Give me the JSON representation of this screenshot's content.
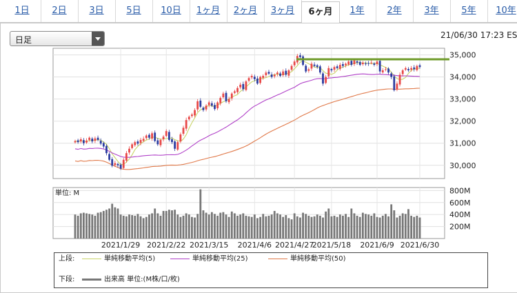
{
  "tabs": [
    {
      "label": "1日",
      "active": false
    },
    {
      "label": "2日",
      "active": false
    },
    {
      "label": "3日",
      "active": false
    },
    {
      "label": "5日",
      "active": false
    },
    {
      "label": "10日",
      "active": false
    },
    {
      "label": "1ヶ月",
      "active": false
    },
    {
      "label": "2ヶ月",
      "active": false
    },
    {
      "label": "3ヶ月",
      "active": false
    },
    {
      "label": "6ヶ月",
      "active": true
    },
    {
      "label": "1年",
      "active": false
    },
    {
      "label": "2年",
      "active": false
    },
    {
      "label": "3年",
      "active": false
    },
    {
      "label": "5年",
      "active": false
    },
    {
      "label": "10年",
      "active": false
    }
  ],
  "period_select": {
    "value": "日足"
  },
  "timestamp": "21/06/30 17:23 ES",
  "colors": {
    "up": "#e84848",
    "down": "#2c3ca0",
    "ma5": "#c8d468",
    "ma25": "#b040c8",
    "ma50": "#e07848",
    "resistance": "#6e9a28",
    "volume": "#777777"
  },
  "volume_label": "単位: M",
  "legend": {
    "upper_label": "上段:",
    "lower_label": "下段:",
    "items": [
      {
        "name": "単純移動平均(5)",
        "color": "#c8d468"
      },
      {
        "name": "単純移動平均(25)",
        "color": "#b040c8"
      },
      {
        "name": "単純移動平均(50)",
        "color": "#e07848"
      }
    ],
    "volume_item": "出来高 単位:(M株/口/枚)"
  },
  "chart_data": {
    "type": "candlestick",
    "price_ylim": [
      29400,
      35300
    ],
    "price_ticks": [
      30000,
      31000,
      32000,
      33000,
      34000,
      35000
    ],
    "price_tick_labels": [
      "30,000",
      "31,000",
      "32,000",
      "33,000",
      "34,000",
      "35,000"
    ],
    "volume_ylim": [
      0,
      850
    ],
    "volume_ticks": [
      200,
      400,
      600,
      800
    ],
    "volume_tick_labels": [
      "200M",
      "400M",
      "600M",
      "800M"
    ],
    "x_labels": [
      {
        "label": "2021/1/29",
        "index": 16
      },
      {
        "label": "2021/2/22",
        "index": 32
      },
      {
        "label": "2021/3/15",
        "index": 47
      },
      {
        "label": "2021/4/6",
        "index": 63
      },
      {
        "label": "2021/4/27",
        "index": 77
      },
      {
        "label": "2021/5/18",
        "index": 90
      },
      {
        "label": "2021/6/9",
        "index": 106
      },
      {
        "label": "2021/6/30",
        "index": 121
      }
    ],
    "resistance_level": 34800,
    "close": [
      31100,
      31050,
      31180,
      31000,
      31120,
      31250,
      31080,
      31220,
      31150,
      30980,
      30850,
      30550,
      30250,
      29980,
      30100,
      30000,
      29850,
      30250,
      30550,
      30750,
      30950,
      31050,
      30980,
      31150,
      31200,
      31350,
      31250,
      31450,
      31100,
      30950,
      31150,
      31300,
      31550,
      31150,
      31050,
      30750,
      31050,
      31400,
      31700,
      32050,
      32200,
      32300,
      32500,
      32900,
      32650,
      32500,
      32700,
      32850,
      32700,
      32550,
      32850,
      33050,
      33250,
      32900,
      33000,
      33250,
      33350,
      33500,
      33650,
      33450,
      33800,
      33950,
      34050,
      33900,
      33700,
      34000,
      34050,
      34200,
      34150,
      34000,
      34100,
      34200,
      34050,
      34250,
      34100,
      34300,
      34500,
      34700,
      34950,
      34900,
      34550,
      34250,
      34350,
      34600,
      34500,
      34450,
      34200,
      33700,
      34000,
      34400,
      34300,
      34450,
      34400,
      34550,
      34500,
      34600,
      34700,
      34550,
      34750,
      34650,
      34550,
      34650,
      34600,
      34600,
      34650,
      34550,
      34700,
      34250,
      34300,
      34350,
      34200,
      34000,
      33400,
      33700,
      34100,
      34300,
      34400,
      34300,
      34400,
      34350,
      34500,
      34450
    ],
    "volume": [
      400,
      380,
      420,
      430,
      420,
      410,
      400,
      380,
      430,
      440,
      460,
      480,
      500,
      580,
      520,
      500,
      400,
      380,
      370,
      400,
      390,
      380,
      410,
      370,
      340,
      360,
      400,
      420,
      500,
      420,
      380,
      460,
      460,
      480,
      470,
      480,
      400,
      360,
      380,
      420,
      400,
      360,
      350,
      410,
      820,
      470,
      430,
      400,
      440,
      410,
      380,
      430,
      440,
      400,
      360,
      450,
      420,
      380,
      400,
      420,
      380,
      370,
      360,
      400,
      340,
      360,
      410,
      370,
      380,
      400,
      460,
      420,
      400,
      360,
      390,
      340,
      320,
      420,
      370,
      350,
      430,
      410,
      380,
      360,
      370,
      400,
      380,
      350,
      450,
      500,
      370,
      380,
      360,
      400,
      380,
      410,
      360,
      500,
      420,
      380,
      360,
      430,
      410,
      400,
      380,
      420,
      360,
      350,
      380,
      410,
      370,
      570,
      470,
      350,
      380,
      420,
      410,
      490,
      380,
      360,
      380,
      350
    ]
  }
}
